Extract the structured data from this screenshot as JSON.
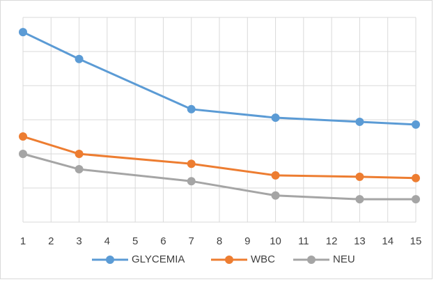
{
  "chart_data": {
    "type": "line",
    "x": [
      1,
      3,
      7,
      10,
      13,
      15
    ],
    "series": [
      {
        "name": "GLYCEMIA",
        "color": "#5b9bd5",
        "values": [
          5.57,
          4.78,
          3.31,
          3.06,
          2.94,
          2.86
        ]
      },
      {
        "name": "WBC",
        "color": "#ed7d31",
        "values": [
          2.51,
          2.0,
          1.71,
          1.37,
          1.33,
          1.29
        ]
      },
      {
        "name": "NEU",
        "color": "#a5a5a5",
        "values": [
          2.0,
          1.55,
          1.2,
          0.78,
          0.67,
          0.67
        ]
      }
    ],
    "xlim": [
      1,
      15
    ],
    "xticks": [
      1,
      2,
      3,
      4,
      5,
      6,
      7,
      8,
      9,
      10,
      11,
      12,
      13,
      14,
      15
    ],
    "ylim": [
      0,
      6
    ],
    "yticks": [
      0,
      1,
      2,
      3,
      4,
      5,
      6
    ],
    "grid": true,
    "legend": "bottom"
  }
}
